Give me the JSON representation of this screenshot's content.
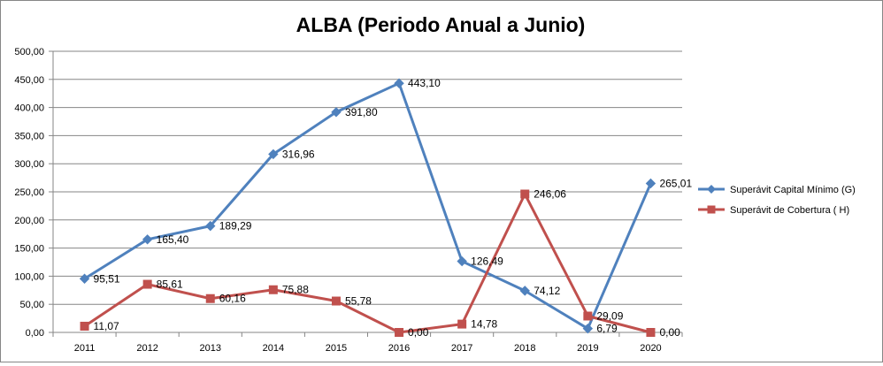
{
  "chart_data": {
    "type": "line",
    "title": "ALBA (Periodo Anual a Junio)",
    "xlabel": "",
    "ylabel": "",
    "categories": [
      "2011",
      "2012",
      "2013",
      "2014",
      "2015",
      "2016",
      "2017",
      "2018",
      "2019",
      "2020"
    ],
    "ylim": [
      0,
      500
    ],
    "yticks": [
      "0,00",
      "50,00",
      "100,00",
      "150,00",
      "200,00",
      "250,00",
      "300,00",
      "350,00",
      "400,00",
      "450,00",
      "500,00"
    ],
    "grid": true,
    "legend_position": "right",
    "series": [
      {
        "name": "Superávit Capital Mínimo  (G)",
        "color": "#4f81bd",
        "marker": "diamond",
        "values": [
          95.51,
          165.4,
          189.29,
          316.96,
          391.8,
          443.1,
          126.49,
          74.12,
          6.79,
          265.01
        ],
        "labels": [
          "95,51",
          "165,40",
          "189,29",
          "316,96",
          "391,80",
          "443,10",
          "126,49",
          "74,12",
          "6,79",
          "265,01"
        ]
      },
      {
        "name": "Superávit de Cobertura ( H)",
        "color": "#c0504d",
        "marker": "square",
        "values": [
          11.07,
          85.61,
          60.16,
          75.88,
          55.78,
          0.0,
          14.78,
          246.06,
          29.09,
          0.0
        ],
        "labels": [
          "11,07",
          "85,61",
          "60,16",
          "75,88",
          "55,78",
          "0,00",
          "14,78",
          "246,06",
          "29,09",
          "0,00"
        ]
      }
    ]
  }
}
